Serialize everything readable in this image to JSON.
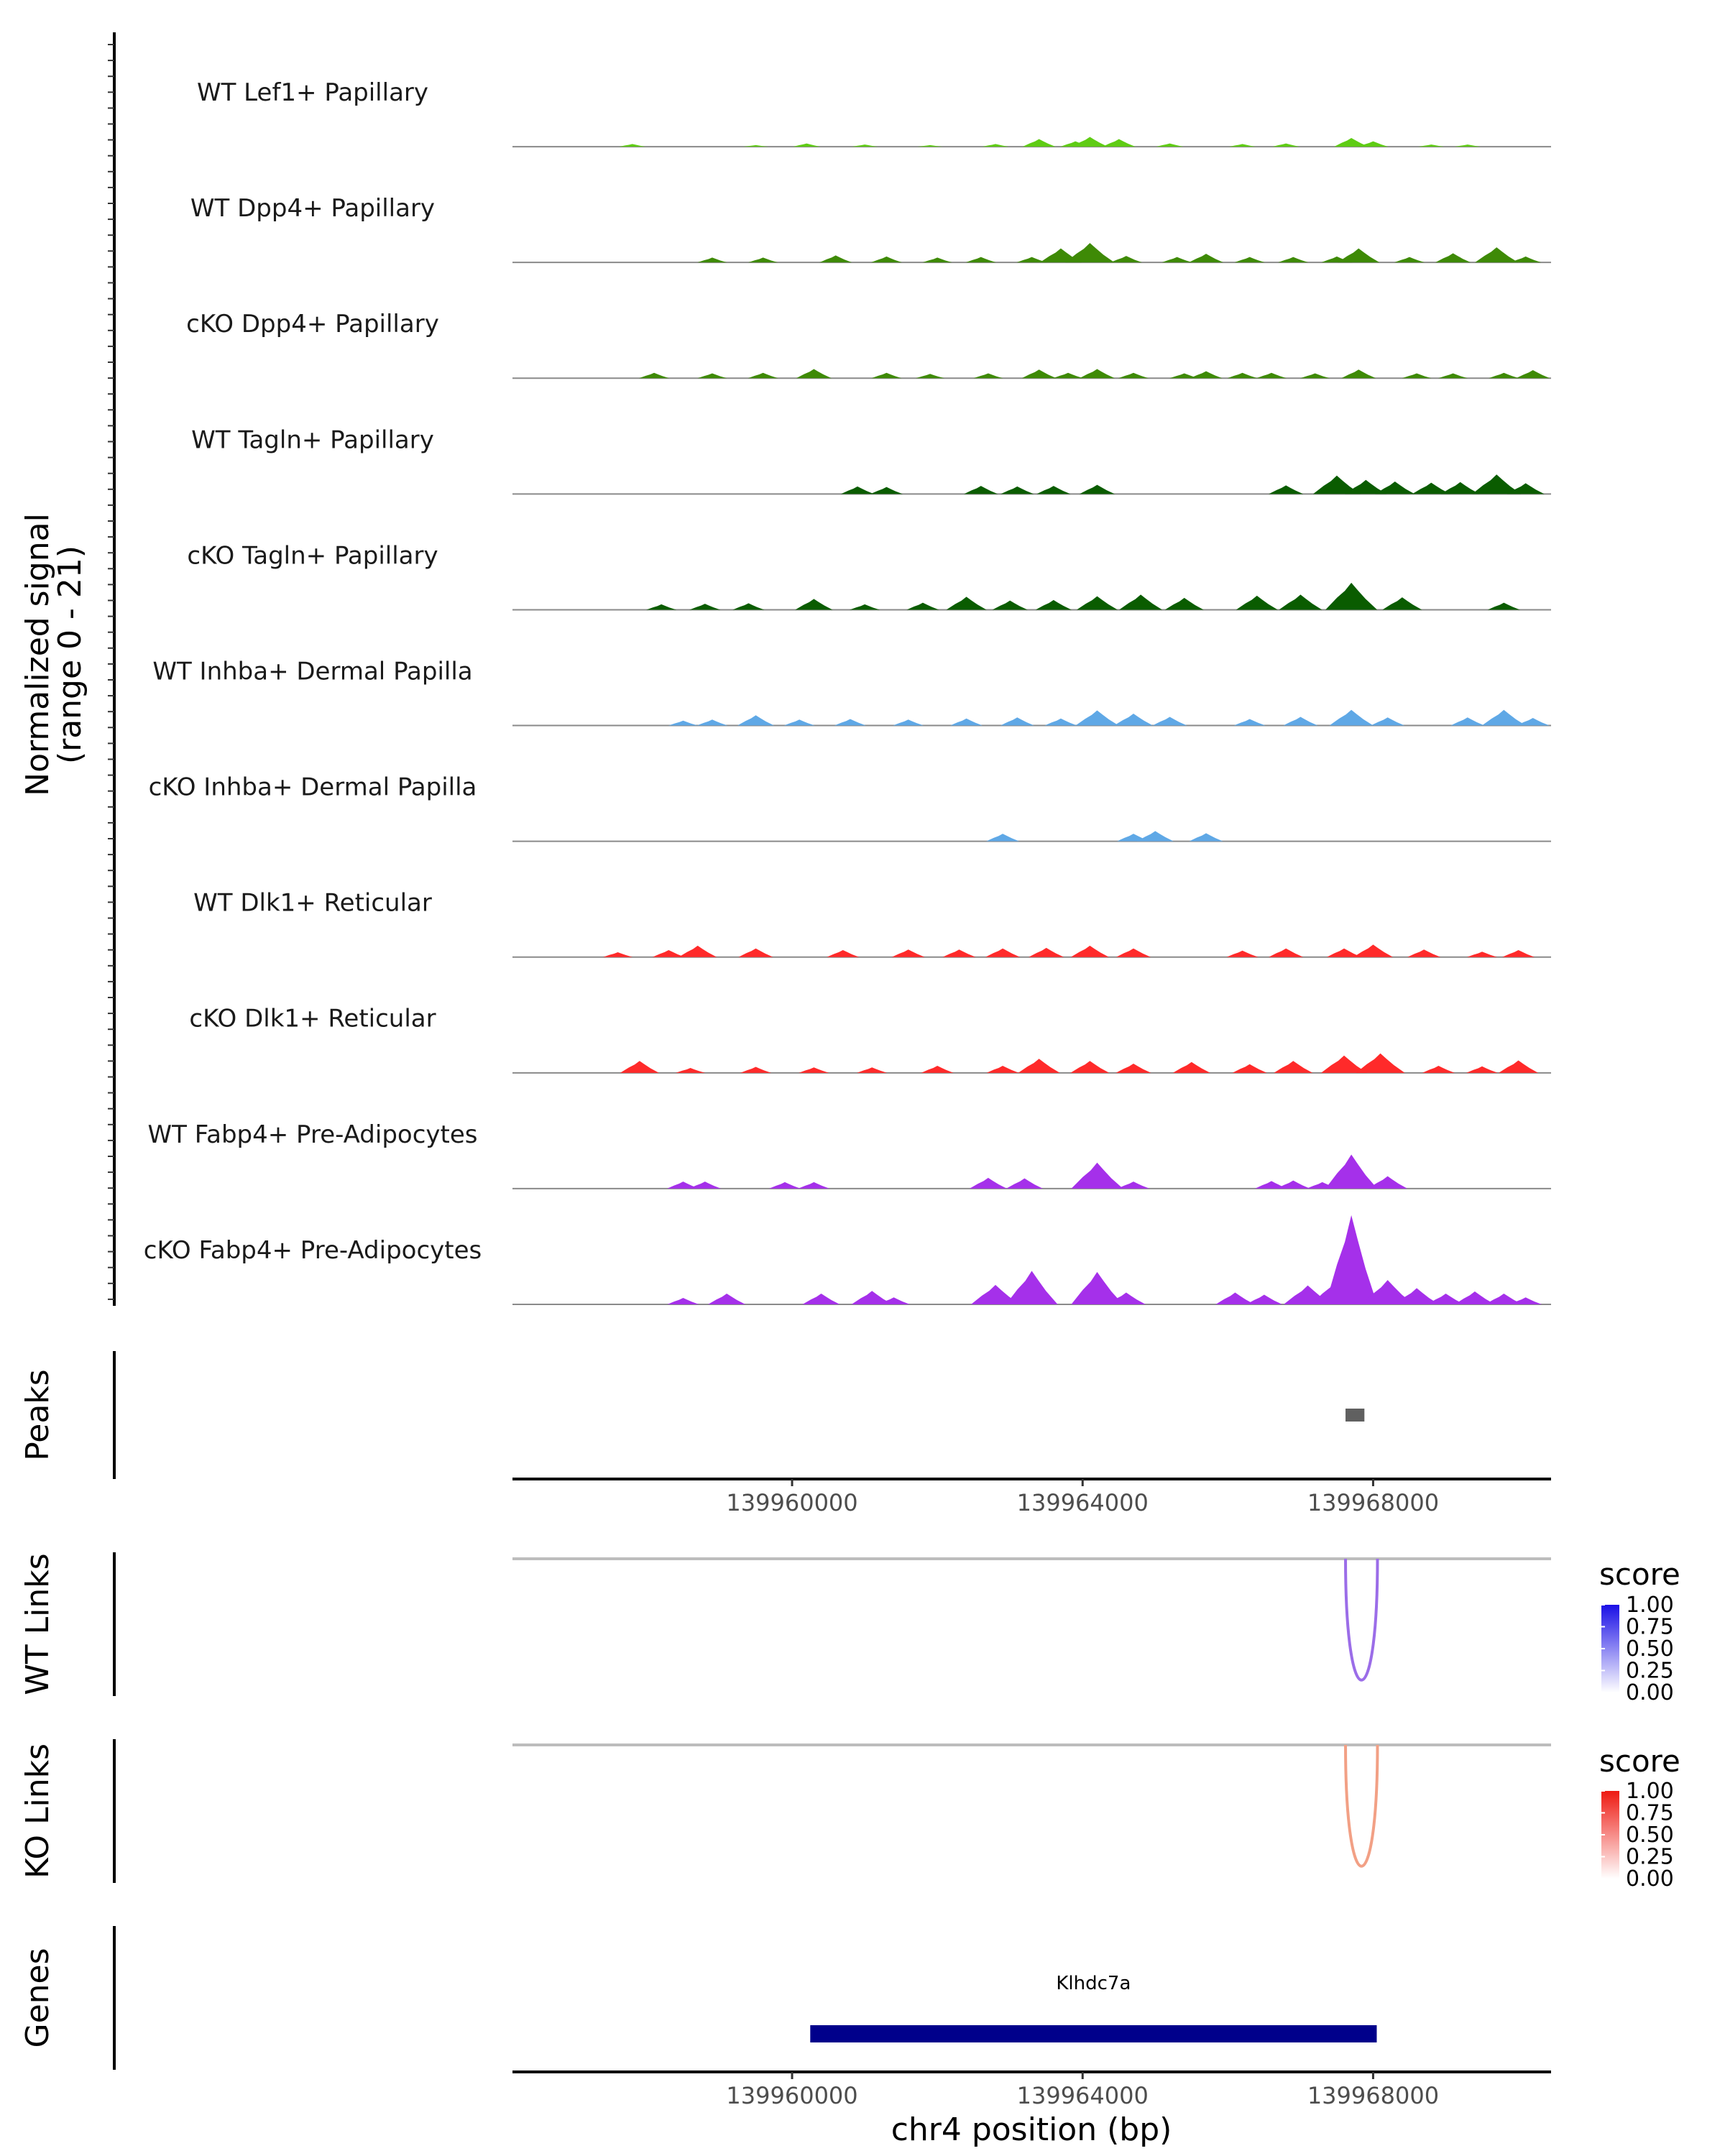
{
  "chart_data": {
    "type": "area",
    "title": "",
    "chromosome": "chr4",
    "xlabel": "chr4 position (bp)",
    "xlim": [
      139956150,
      139970450
    ],
    "xticks": [
      139960000,
      139964000,
      139968000
    ],
    "xtick_labels": [
      "139960000",
      "139964000",
      "139968000"
    ],
    "ylabel_signal": "Normalized signal",
    "ylabel_range": "(range 0 - 21)",
    "ylim": [
      0,
      21
    ],
    "tracks": [
      {
        "name": "WT Lef1+ Papillary",
        "color": "#5fcc14",
        "peaks": [
          [
            139957800,
            0.5
          ],
          [
            139959500,
            0.3
          ],
          [
            139960200,
            0.6
          ],
          [
            139961000,
            0.4
          ],
          [
            139961900,
            0.3
          ],
          [
            139962800,
            0.5
          ],
          [
            139963400,
            1.4
          ],
          [
            139963900,
            1.0
          ],
          [
            139964100,
            1.8
          ],
          [
            139964500,
            1.4
          ],
          [
            139965200,
            0.6
          ],
          [
            139966200,
            0.5
          ],
          [
            139966800,
            0.6
          ],
          [
            139967700,
            1.6
          ],
          [
            139968000,
            1.0
          ],
          [
            139968800,
            0.4
          ],
          [
            139969300,
            0.4
          ]
        ]
      },
      {
        "name": "WT Dpp4+ Papillary",
        "color": "#3e8a06",
        "peaks": [
          [
            139958900,
            0.9
          ],
          [
            139959600,
            0.9
          ],
          [
            139960600,
            1.3
          ],
          [
            139961300,
            1.1
          ],
          [
            139962000,
            0.9
          ],
          [
            139962600,
            1.0
          ],
          [
            139963300,
            1.0
          ],
          [
            139963700,
            2.6
          ],
          [
            139964100,
            3.6
          ],
          [
            139964600,
            1.2
          ],
          [
            139965300,
            1.0
          ],
          [
            139965700,
            1.6
          ],
          [
            139966300,
            1.0
          ],
          [
            139966900,
            1.0
          ],
          [
            139967500,
            1.1
          ],
          [
            139967800,
            2.6
          ],
          [
            139968500,
            1.0
          ],
          [
            139969100,
            1.7
          ],
          [
            139969700,
            2.8
          ],
          [
            139970100,
            1.1
          ]
        ]
      },
      {
        "name": "cKO Dpp4+ Papillary",
        "color": "#3e8a06",
        "peaks": [
          [
            139958100,
            1.0
          ],
          [
            139958900,
            0.9
          ],
          [
            139959600,
            1.0
          ],
          [
            139960300,
            1.7
          ],
          [
            139961300,
            1.0
          ],
          [
            139961900,
            0.8
          ],
          [
            139962700,
            0.9
          ],
          [
            139963400,
            1.6
          ],
          [
            139963800,
            1.0
          ],
          [
            139964200,
            1.7
          ],
          [
            139964700,
            1.0
          ],
          [
            139965400,
            0.9
          ],
          [
            139965700,
            1.3
          ],
          [
            139966200,
            1.0
          ],
          [
            139966600,
            1.0
          ],
          [
            139967200,
            0.9
          ],
          [
            139967800,
            1.6
          ],
          [
            139968600,
            0.9
          ],
          [
            139969100,
            0.9
          ],
          [
            139969800,
            1.0
          ],
          [
            139970200,
            1.5
          ]
        ]
      },
      {
        "name": "WT Tagln+ Papillary",
        "color": "#0a5c00",
        "peaks": [
          [
            139960900,
            1.4
          ],
          [
            139961300,
            1.3
          ],
          [
            139962600,
            1.5
          ],
          [
            139963100,
            1.4
          ],
          [
            139963600,
            1.5
          ],
          [
            139964200,
            1.7
          ],
          [
            139966800,
            1.6
          ],
          [
            139967500,
            3.4
          ],
          [
            139967900,
            2.6
          ],
          [
            139968300,
            2.3
          ],
          [
            139968800,
            2.1
          ],
          [
            139969200,
            2.2
          ],
          [
            139969700,
            3.6
          ],
          [
            139970100,
            2.0
          ]
        ]
      },
      {
        "name": "cKO Tagln+ Papillary",
        "color": "#0a5c00",
        "peaks": [
          [
            139958200,
            1.0
          ],
          [
            139958800,
            1.1
          ],
          [
            139959400,
            1.2
          ],
          [
            139960300,
            2.0
          ],
          [
            139961000,
            1.0
          ],
          [
            139961800,
            1.3
          ],
          [
            139962400,
            2.4
          ],
          [
            139963000,
            1.7
          ],
          [
            139963600,
            1.8
          ],
          [
            139964200,
            2.5
          ],
          [
            139964800,
            2.8
          ],
          [
            139965400,
            2.2
          ],
          [
            139966400,
            2.6
          ],
          [
            139967000,
            2.8
          ],
          [
            139967700,
            5.0
          ],
          [
            139968400,
            2.3
          ],
          [
            139969800,
            1.3
          ]
        ]
      },
      {
        "name": "WT Inhba+ Dermal Papilla",
        "color": "#5fa8e6",
        "peaks": [
          [
            139958500,
            0.9
          ],
          [
            139958900,
            1.1
          ],
          [
            139959500,
            1.9
          ],
          [
            139960100,
            1.1
          ],
          [
            139960800,
            1.2
          ],
          [
            139961600,
            1.1
          ],
          [
            139962400,
            1.3
          ],
          [
            139963100,
            1.5
          ],
          [
            139963700,
            1.3
          ],
          [
            139964200,
            2.8
          ],
          [
            139964700,
            2.2
          ],
          [
            139965200,
            1.6
          ],
          [
            139966300,
            1.2
          ],
          [
            139967000,
            1.6
          ],
          [
            139967700,
            2.9
          ],
          [
            139968200,
            1.5
          ],
          [
            139969300,
            1.5
          ],
          [
            139969800,
            2.9
          ],
          [
            139970200,
            1.4
          ]
        ]
      },
      {
        "name": "cKO Inhba+ Dermal Papilla",
        "color": "#5fa8e6",
        "peaks": [
          [
            139962900,
            1.4
          ],
          [
            139964700,
            1.4
          ],
          [
            139965000,
            1.9
          ],
          [
            139965700,
            1.5
          ]
        ]
      },
      {
        "name": "WT Dlk1+ Reticular",
        "color": "#ff2a2a",
        "peaks": [
          [
            139957600,
            0.9
          ],
          [
            139958300,
            1.3
          ],
          [
            139958700,
            2.1
          ],
          [
            139959500,
            1.6
          ],
          [
            139960700,
            1.3
          ],
          [
            139961600,
            1.4
          ],
          [
            139962300,
            1.4
          ],
          [
            139962900,
            1.6
          ],
          [
            139963500,
            1.7
          ],
          [
            139964100,
            2.1
          ],
          [
            139964700,
            1.6
          ],
          [
            139966200,
            1.2
          ],
          [
            139966800,
            1.6
          ],
          [
            139967600,
            1.6
          ],
          [
            139968000,
            2.3
          ],
          [
            139968700,
            1.4
          ],
          [
            139969500,
            1.0
          ],
          [
            139970000,
            1.3
          ]
        ]
      },
      {
        "name": "cKO Dlk1+ Reticular",
        "color": "#ff2a2a",
        "peaks": [
          [
            139957900,
            2.2
          ],
          [
            139958600,
            0.9
          ],
          [
            139959500,
            1.1
          ],
          [
            139960300,
            1.0
          ],
          [
            139961100,
            1.0
          ],
          [
            139962000,
            1.3
          ],
          [
            139962900,
            1.3
          ],
          [
            139963400,
            2.6
          ],
          [
            139964100,
            2.2
          ],
          [
            139964700,
            1.7
          ],
          [
            139965500,
            2.0
          ],
          [
            139966300,
            1.6
          ],
          [
            139966900,
            2.2
          ],
          [
            139967600,
            3.2
          ],
          [
            139968100,
            3.6
          ],
          [
            139968900,
            1.3
          ],
          [
            139969500,
            1.2
          ],
          [
            139970000,
            2.3
          ]
        ]
      },
      {
        "name": "WT Fabp4+ Pre-Adipocytes",
        "color": "#a530ea",
        "peaks": [
          [
            139958500,
            1.3
          ],
          [
            139958800,
            1.3
          ],
          [
            139959900,
            1.2
          ],
          [
            139960300,
            1.2
          ],
          [
            139962700,
            2.0
          ],
          [
            139963200,
            1.9
          ],
          [
            139964200,
            4.8
          ],
          [
            139964700,
            1.3
          ],
          [
            139966600,
            1.4
          ],
          [
            139966900,
            1.5
          ],
          [
            139967300,
            1.2
          ],
          [
            139967700,
            6.3
          ],
          [
            139968200,
            2.3
          ]
        ]
      },
      {
        "name": "cKO Fabp4+ Pre-Adipocytes",
        "color": "#a530ea",
        "peaks": [
          [
            139958500,
            1.2
          ],
          [
            139959100,
            2.0
          ],
          [
            139960400,
            2.0
          ],
          [
            139961100,
            2.5
          ],
          [
            139961400,
            1.3
          ],
          [
            139962800,
            3.6
          ],
          [
            139963300,
            6.2
          ],
          [
            139964200,
            6.0
          ],
          [
            139964600,
            2.2
          ],
          [
            139966100,
            2.2
          ],
          [
            139966500,
            1.8
          ],
          [
            139967100,
            3.5
          ],
          [
            139967500,
            4.5
          ],
          [
            139967700,
            16.5
          ],
          [
            139968200,
            4.5
          ],
          [
            139968600,
            3.0
          ],
          [
            139969000,
            2.0
          ],
          [
            139969400,
            2.4
          ],
          [
            139969800,
            2.0
          ],
          [
            139970100,
            1.3
          ]
        ]
      }
    ],
    "peaks_track": {
      "label": "Peaks",
      "regions": [
        [
          139967620,
          139967880
        ]
      ]
    },
    "wt_links": {
      "label": "WT Links",
      "legend_title": "score",
      "legend_values": [
        "1.00",
        "0.75",
        "0.50",
        "0.25",
        "0.00"
      ],
      "color": "#9b6de8",
      "low_color": "#ffffff",
      "high_color": "#1a0fe6",
      "links": [
        [
          139967620,
          139968060,
          0.55
        ]
      ]
    },
    "ko_links": {
      "label": "KO Links",
      "legend_title": "score",
      "legend_values": [
        "1.00",
        "0.75",
        "0.50",
        "0.25",
        "0.00"
      ],
      "color": "#f2a085",
      "low_color": "#ffffff",
      "high_color": "#ee1a12",
      "links": [
        [
          139967620,
          139968060,
          0.45
        ]
      ]
    },
    "genes": {
      "label": "Genes",
      "color": "#00008b",
      "items": [
        {
          "name": "Klhdc7a",
          "start": 139960250,
          "end": 139968050
        }
      ]
    }
  }
}
